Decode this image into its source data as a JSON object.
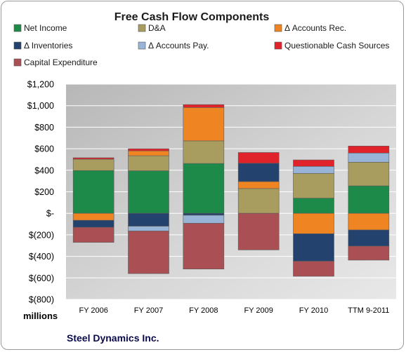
{
  "chart_data": {
    "type": "bar",
    "stacked": true,
    "title": "Free Cash Flow Components",
    "units_label": "millions",
    "company": "Steel Dynamics Inc.",
    "categories": [
      "FY 2006",
      "FY 2007",
      "FY 2008",
      "FY 2009",
      "FY 2010",
      "TTM 9-2011"
    ],
    "ylim": [
      -800,
      1200
    ],
    "yticks": [
      1200,
      1000,
      800,
      600,
      400,
      200,
      0,
      -200,
      -400,
      -600,
      -800
    ],
    "ytick_labels": [
      "$1,200",
      "$1,000",
      "$800",
      "$600",
      "$400",
      "$200",
      "$-",
      "$(200)",
      "$(400)",
      "$(600)",
      "$(800)"
    ],
    "grid": true,
    "legend_position": "top",
    "series": [
      {
        "name": "Net Income",
        "color": "#1e8a4a",
        "values": [
          397,
          395,
          463,
          0,
          141,
          255
        ]
      },
      {
        "name": "D&A",
        "color": "#a99c5f",
        "values": [
          106,
          140,
          210,
          230,
          230,
          220
        ]
      },
      {
        "name": "Δ Accounts Rec.",
        "color": "#ef8522",
        "values": [
          -65,
          45,
          310,
          65,
          -190,
          -155
        ]
      },
      {
        "name": "Δ Inventories",
        "color": "#24426e",
        "values": [
          -65,
          -120,
          -18,
          170,
          -255,
          -150
        ]
      },
      {
        "name": "Δ Accounts Pay.",
        "color": "#98b4d6",
        "values": [
          0,
          -45,
          -75,
          0,
          65,
          85
        ]
      },
      {
        "name": "Questionable Cash Sources",
        "color": "#e0222b",
        "values": [
          13,
          20,
          27,
          100,
          60,
          65
        ]
      },
      {
        "name": "Capital Expenditure",
        "color": "#aa5054",
        "values": [
          -140,
          -395,
          -425,
          -340,
          -140,
          -130
        ]
      }
    ]
  }
}
